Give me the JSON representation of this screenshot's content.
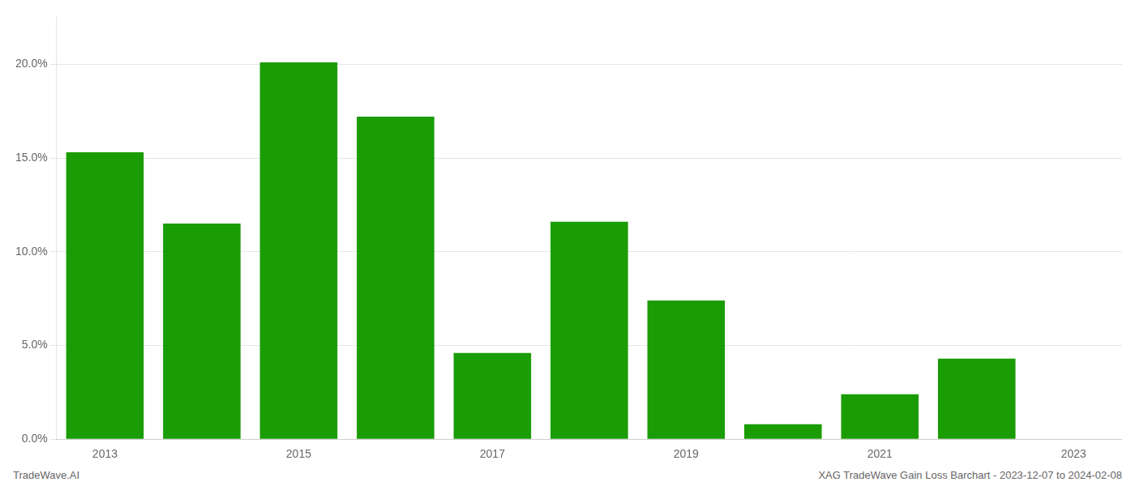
{
  "chart_data": {
    "type": "bar",
    "categories": [
      "2013",
      null,
      "2015",
      null,
      "2017",
      null,
      "2019",
      null,
      "2021",
      null,
      "2023"
    ],
    "values": [
      0.153,
      0.115,
      0.201,
      0.172,
      0.046,
      0.116,
      0.074,
      0.008,
      0.024,
      0.043,
      0.0
    ],
    "color": "#1a9c04",
    "ylim": [
      0,
      0.225
    ],
    "yticks": [
      {
        "value": 0.0,
        "label": "0.0%"
      },
      {
        "value": 0.05,
        "label": "5.0%"
      },
      {
        "value": 0.1,
        "label": "10.0%"
      },
      {
        "value": 0.15,
        "label": "15.0%"
      },
      {
        "value": 0.2,
        "label": "20.0%"
      }
    ],
    "grid": true,
    "annotations": [
      "TradeWave.AI",
      "XAG TradeWave Gain Loss Barchart - 2023-12-07 to 2024-02-08"
    ]
  }
}
